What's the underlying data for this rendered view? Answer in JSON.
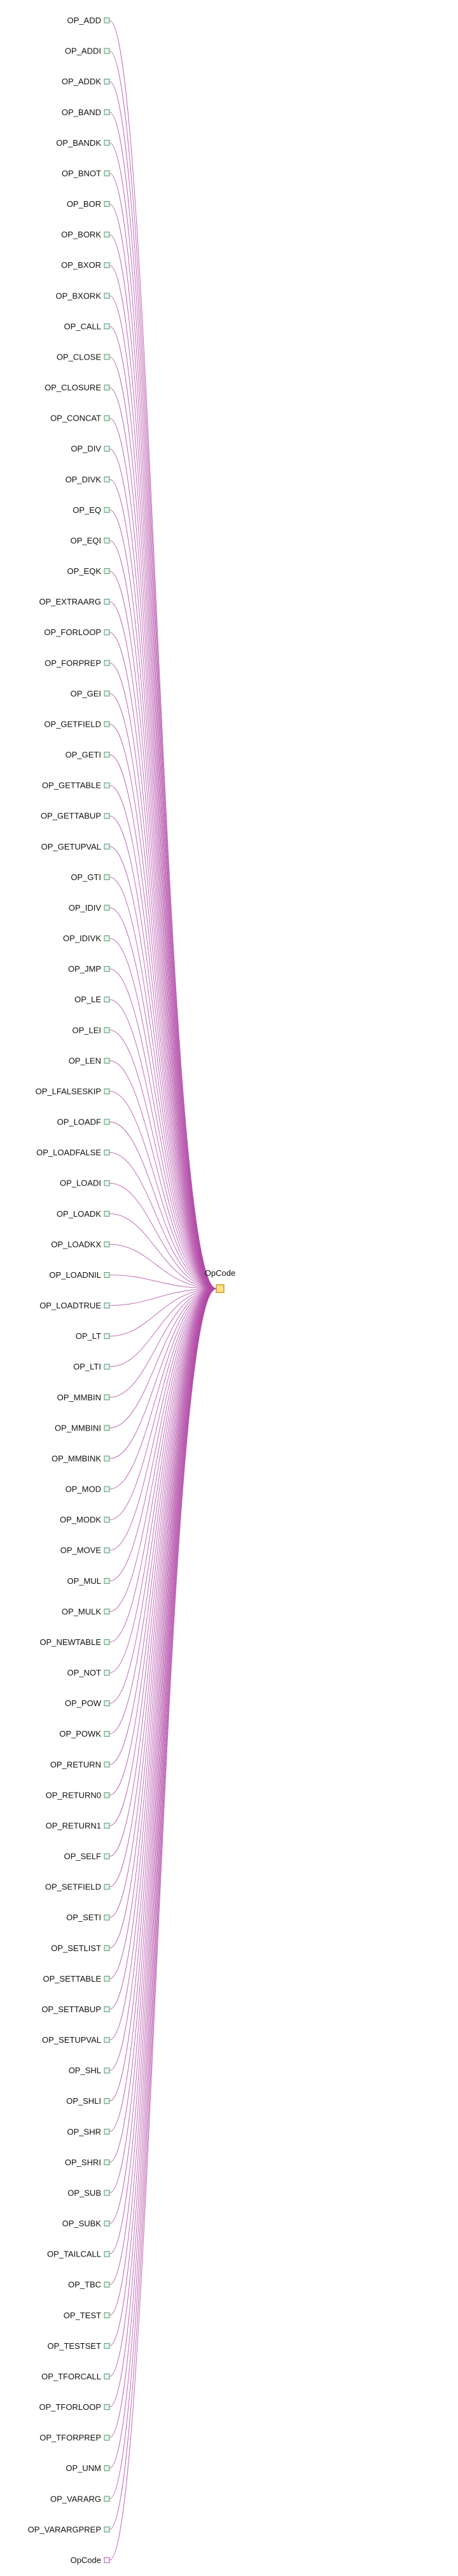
{
  "colors": {
    "edge": "#b24aa6",
    "leaf_node_fill": "#e8f5ec",
    "leaf_node_stroke": "#4f9a6a",
    "root_node_fill": "#ffe08a",
    "root_node_stroke": "#c79a2b",
    "last_node_stroke": "#b24aa6"
  },
  "root": {
    "label": "OpCode"
  },
  "nodes": [
    "OP_ADD",
    "OP_ADDI",
    "OP_ADDK",
    "OP_BAND",
    "OP_BANDK",
    "OP_BNOT",
    "OP_BOR",
    "OP_BORK",
    "OP_BXOR",
    "OP_BXORK",
    "OP_CALL",
    "OP_CLOSE",
    "OP_CLOSURE",
    "OP_CONCAT",
    "OP_DIV",
    "OP_DIVK",
    "OP_EQ",
    "OP_EQI",
    "OP_EQK",
    "OP_EXTRAARG",
    "OP_FORLOOP",
    "OP_FORPREP",
    "OP_GEI",
    "OP_GETFIELD",
    "OP_GETI",
    "OP_GETTABLE",
    "OP_GETTABUP",
    "OP_GETUPVAL",
    "OP_GTI",
    "OP_IDIV",
    "OP_IDIVK",
    "OP_JMP",
    "OP_LE",
    "OP_LEI",
    "OP_LEN",
    "OP_LFALSESKIP",
    "OP_LOADF",
    "OP_LOADFALSE",
    "OP_LOADI",
    "OP_LOADK",
    "OP_LOADKX",
    "OP_LOADNIL",
    "OP_LOADTRUE",
    "OP_LT",
    "OP_LTI",
    "OP_MMBIN",
    "OP_MMBINI",
    "OP_MMBINK",
    "OP_MOD",
    "OP_MODK",
    "OP_MOVE",
    "OP_MUL",
    "OP_MULK",
    "OP_NEWTABLE",
    "OP_NOT",
    "OP_POW",
    "OP_POWK",
    "OP_RETURN",
    "OP_RETURN0",
    "OP_RETURN1",
    "OP_SELF",
    "OP_SETFIELD",
    "OP_SETI",
    "OP_SETLIST",
    "OP_SETTABLE",
    "OP_SETTABUP",
    "OP_SETUPVAL",
    "OP_SHL",
    "OP_SHLI",
    "OP_SHR",
    "OP_SHRI",
    "OP_SUB",
    "OP_SUBK",
    "OP_TAILCALL",
    "OP_TBC",
    "OP_TEST",
    "OP_TESTSET",
    "OP_TFORCALL",
    "OP_TFORLOOP",
    "OP_TFORPREP",
    "OP_UNM",
    "OP_VARARG",
    "OP_VARARGPREP",
    "OpCode"
  ]
}
